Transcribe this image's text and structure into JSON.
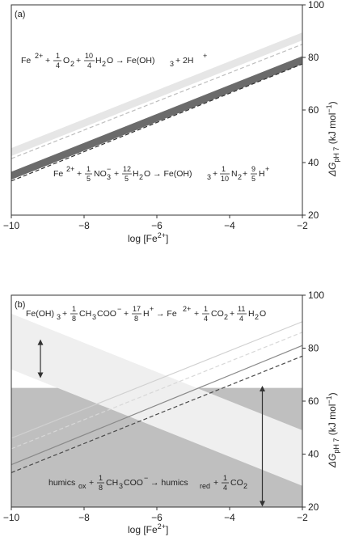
{
  "chart_data": [
    {
      "type": "line",
      "panel_label": "(a)",
      "xlabel": "log [Fe2+]",
      "ylabel": "ΔG pH 7 (kJ mol−1)",
      "xlim": [
        -10,
        -2
      ],
      "ylim": [
        20,
        100
      ],
      "x_ticks": [
        "−10",
        "−8",
        "−6",
        "−4",
        "−2"
      ],
      "y_ticks": [
        "20",
        "40",
        "60",
        "80",
        "100"
      ],
      "grid": false,
      "series": [
        {
          "kind": "band",
          "x": [
            -10,
            -2
          ],
          "y_upper": [
            45.5,
            89.5
          ],
          "y_lower": [
            42.5,
            86.5
          ],
          "color": "#e6e6e6"
        },
        {
          "kind": "line",
          "style": "dashed",
          "x": [
            -10,
            -2
          ],
          "y": [
            41.5,
            85.0
          ],
          "color": "#bdbdbd"
        },
        {
          "kind": "band",
          "x": [
            -10,
            -2
          ],
          "y_upper": [
            36.5,
            80.5
          ],
          "y_lower": [
            33.5,
            77.5
          ],
          "color": "#6b6b6b"
        },
        {
          "kind": "line",
          "style": "dashed",
          "x": [
            -10,
            -2
          ],
          "y": [
            33.0,
            77.5
          ],
          "color": "#333333"
        }
      ],
      "equations": [
        {
          "parts": [
            "Fe",
            "2+",
            "+",
            "1",
            "4",
            "O",
            "2",
            "+",
            "10",
            "4",
            "H",
            "2",
            "O → Fe(OH)",
            "3",
            "+ 2H",
            "+"
          ]
        },
        {
          "parts": [
            "Fe",
            "2+",
            "+",
            "1",
            "5",
            "NO",
            "3",
            "−",
            "+",
            "12",
            "5",
            "H",
            "2",
            "O → Fe(OH)",
            "3",
            "+",
            "1",
            "10",
            "N",
            "2",
            "+",
            "9",
            "5",
            "H",
            "+"
          ]
        }
      ]
    },
    {
      "type": "line",
      "panel_label": "(b)",
      "xlabel": "log [Fe2+]",
      "ylabel": "ΔG pH 7 (kJ mol−1)",
      "xlim": [
        -10,
        -2
      ],
      "ylim": [
        20,
        100
      ],
      "x_ticks": [
        "−10",
        "−8",
        "−6",
        "−4",
        "−2"
      ],
      "y_ticks": [
        "20",
        "40",
        "60",
        "80",
        "100"
      ],
      "grid": false,
      "series": [
        {
          "kind": "band",
          "x": [
            -10,
            -2
          ],
          "y_upper": [
            65,
            65
          ],
          "y_lower": [
            20,
            20
          ],
          "color": "#bfbfbf"
        },
        {
          "kind": "band",
          "x": [
            -10,
            -2
          ],
          "y_upper": [
            93,
            49
          ],
          "y_lower": [
            72,
            28
          ],
          "color": "#efefef"
        },
        {
          "kind": "line",
          "style": "solid",
          "x": [
            -10,
            -2
          ],
          "y": [
            46,
            90
          ],
          "color": "#d0d0d0"
        },
        {
          "kind": "line",
          "style": "dashed",
          "x": [
            -10,
            -2
          ],
          "y": [
            42,
            86
          ],
          "color": "#d8d8d8"
        },
        {
          "kind": "line",
          "style": "solid",
          "x": [
            -10,
            -2
          ],
          "y": [
            36,
            81
          ],
          "color": "#8a8a8a"
        },
        {
          "kind": "line",
          "style": "dashed",
          "x": [
            -10,
            -2
          ],
          "y": [
            33,
            77
          ],
          "color": "#4a4a4a"
        }
      ],
      "arrows": [
        {
          "x": -9.2,
          "y_from": 83,
          "y_to": 69
        },
        {
          "x": -3.1,
          "y_from": 65.5,
          "y_to": 20.5
        }
      ],
      "equations": [
        {
          "parts": [
            "Fe(OH)",
            "3",
            "+",
            "1",
            "8",
            "CH",
            "3",
            "COO",
            "−",
            "+",
            "17",
            "8",
            "H",
            "+",
            "→ Fe",
            "2+",
            "+",
            "1",
            "4",
            "CO",
            "2",
            "+",
            "11",
            "4",
            "H",
            "2",
            "O"
          ]
        },
        {
          "parts": [
            "humics",
            "ox",
            "+",
            "1",
            "8",
            "CH",
            "3",
            "COO",
            "−",
            "→ humics",
            "red",
            "+",
            "1",
            "4",
            "CO",
            "2"
          ]
        }
      ]
    }
  ]
}
